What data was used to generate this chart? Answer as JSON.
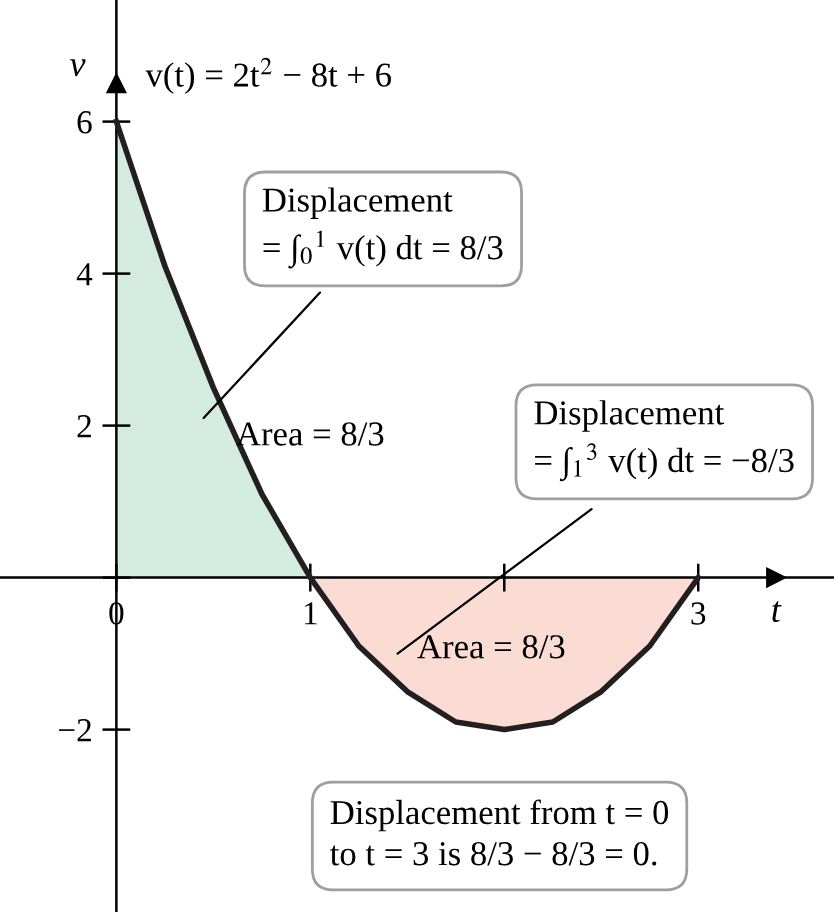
{
  "chart_data": {
    "type": "line",
    "title": "v(t) = 2t$^{2}$ − 8t + 6",
    "xlabel": "t",
    "ylabel": "v",
    "xlim": [
      -0.6,
      3.7
    ],
    "ylim": [
      -4.4,
      7.6
    ],
    "xticks": [
      {
        "value": 0,
        "label": "0"
      },
      1,
      {
        "value": 2,
        "label": null
      },
      3
    ],
    "yticks": [
      -2,
      {
        "value": 0,
        "label": null
      },
      2,
      4,
      6
    ],
    "grid": false,
    "legend": false,
    "marker": "none",
    "line_style": "solid",
    "series": [
      {
        "type": "area",
        "color": "#d4ebe2",
        "x": [
          0,
          0.25,
          0.5,
          0.75,
          1
        ],
        "values": [
          6,
          4.1,
          2.5,
          1.1,
          0
        ]
      },
      {
        "type": "area",
        "color": "#fbdcd4",
        "x": [
          1,
          1.25,
          1.5,
          1.75,
          2,
          2.25,
          2.5,
          2.75,
          3
        ],
        "values": [
          0,
          -0.9,
          -1.5,
          -1.9,
          -2,
          -1.9,
          -1.5,
          -0.9,
          0
        ]
      },
      {
        "color": "#231f20",
        "x": [
          0,
          0.25,
          0.5,
          0.75,
          1,
          1.25,
          1.5,
          1.75,
          2,
          2.25,
          2.5,
          2.75,
          3
        ],
        "values": [
          6,
          4.1,
          2.5,
          1.1,
          0,
          -0.9,
          -1.5,
          -1.9,
          -2,
          -1.9,
          -1.5,
          -0.9,
          0
        ]
      }
    ],
    "annotations": [
      "Displacement\n= ∫$_{0}$$^{1}$ v(t) dt = 8/3",
      "Area = 8/3",
      "Displacement\n= ∫$_{1}$$^{3}$ v(t) dt = −8/3",
      "Area = 8/3",
      "Displacement from t = 0\nto t = 3 is 8/3 − 8/3 = 0."
    ]
  }
}
